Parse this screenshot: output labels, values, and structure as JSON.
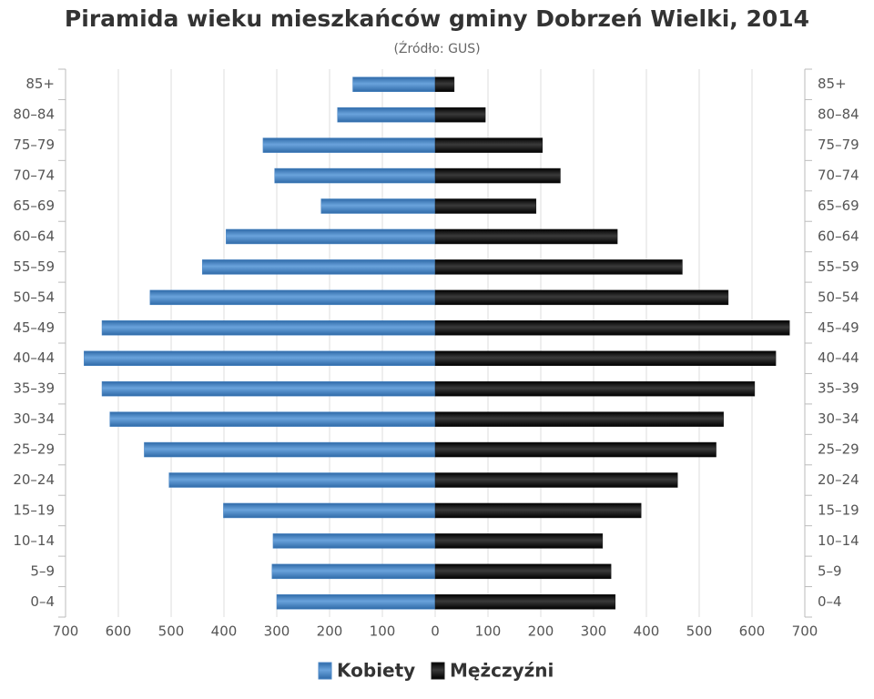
{
  "chart_data": {
    "type": "pyramid",
    "title": "Piramida wieku mieszkańców gminy Dobrzeń Wielki, 2014",
    "subtitle": "(Źródło: GUS)",
    "categories": [
      "85+",
      "80–84",
      "75–79",
      "70–74",
      "65–69",
      "60–64",
      "55–59",
      "50–54",
      "45–49",
      "40–44",
      "35–39",
      "30–34",
      "25–29",
      "20–24",
      "15–19",
      "10–14",
      "5–9",
      "0–4"
    ],
    "series": [
      {
        "name": "Kobiety",
        "color": "#4a86c5",
        "side": "left",
        "values": [
          156,
          185,
          326,
          304,
          216,
          396,
          441,
          540,
          631,
          665,
          631,
          616,
          551,
          504,
          401,
          307,
          309,
          300
        ]
      },
      {
        "name": "Mężczyźni",
        "color": "#1c1c1c",
        "side": "right",
        "values": [
          36,
          95,
          203,
          237,
          191,
          345,
          468,
          555,
          671,
          645,
          605,
          546,
          532,
          459,
          390,
          317,
          333,
          341
        ]
      }
    ],
    "xlim": [
      -700,
      700
    ],
    "xticks": [
      {
        "value": -700,
        "label": "700"
      },
      {
        "value": -600,
        "label": "600"
      },
      {
        "value": -500,
        "label": "500"
      },
      {
        "value": -400,
        "label": "400"
      },
      {
        "value": -300,
        "label": "300"
      },
      {
        "value": -200,
        "label": "200"
      },
      {
        "value": -100,
        "label": "100"
      },
      0,
      100,
      200,
      300,
      400,
      500,
      600,
      700
    ],
    "grid": true
  }
}
